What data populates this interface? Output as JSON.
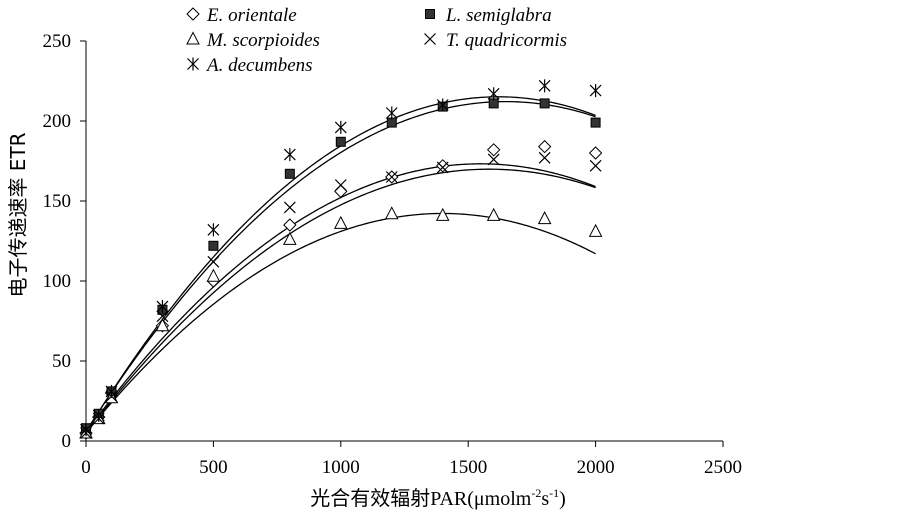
{
  "chart_data": {
    "type": "scatter",
    "title": "",
    "xlabel": "光合有效辐射PAR(μmolm⁻²s⁻¹)",
    "xlabel_parts": {
      "main": "光合有效辐射PAR(μmolm",
      "sup1": "-2",
      "mid": "s",
      "sup2": "-1",
      "end": ")"
    },
    "ylabel": "电子传递速率   ETR",
    "xlim": [
      0,
      2500
    ],
    "ylim": [
      0,
      250
    ],
    "xticks": [
      "0",
      "500",
      "1000",
      "1500",
      "2000",
      "2500"
    ],
    "yticks": [
      "0",
      "50",
      "100",
      "150",
      "200",
      "250"
    ],
    "grid": false,
    "legend_position": "top",
    "x": [
      0,
      50,
      100,
      300,
      500,
      800,
      1000,
      1200,
      1400,
      1600,
      1800,
      2000
    ],
    "series": [
      {
        "name": "E. orientale",
        "marker": "diamond-open",
        "values": [
          5,
          15,
          30,
          72,
          100,
          135,
          156,
          165,
          172,
          182,
          184,
          180
        ],
        "fit": [
          4.74,
          0.2088,
          -6.6e-05
        ]
      },
      {
        "name": "L. semiglabra",
        "marker": "square-filled",
        "values": [
          8,
          17,
          31,
          82,
          122,
          167,
          187,
          199,
          209,
          211,
          211,
          199
        ],
        "fit": [
          6.04,
          0.2503,
          -7.6e-05
        ]
      },
      {
        "name": "M. scorpioides",
        "marker": "triangle-open",
        "values": [
          5,
          14,
          27,
          72,
          103,
          126,
          136,
          142,
          141,
          141,
          139,
          131
        ],
        "fit": [
          5.0,
          0.196,
          -7e-05
        ]
      },
      {
        "name": "T. quadricormis",
        "marker": "x",
        "values": [
          5,
          14,
          28,
          78,
          112,
          146,
          160,
          165,
          171,
          176,
          177,
          172
        ],
        "fit": [
          5.37,
          0.2168,
          -7e-05
        ]
      },
      {
        "name": "A. decumbens",
        "marker": "asterisk",
        "values": [
          7,
          16,
          31,
          84,
          132,
          179,
          196,
          205,
          210,
          217,
          222,
          219
        ],
        "fit": [
          5.5,
          0.259,
          -8e-05
        ]
      }
    ]
  }
}
